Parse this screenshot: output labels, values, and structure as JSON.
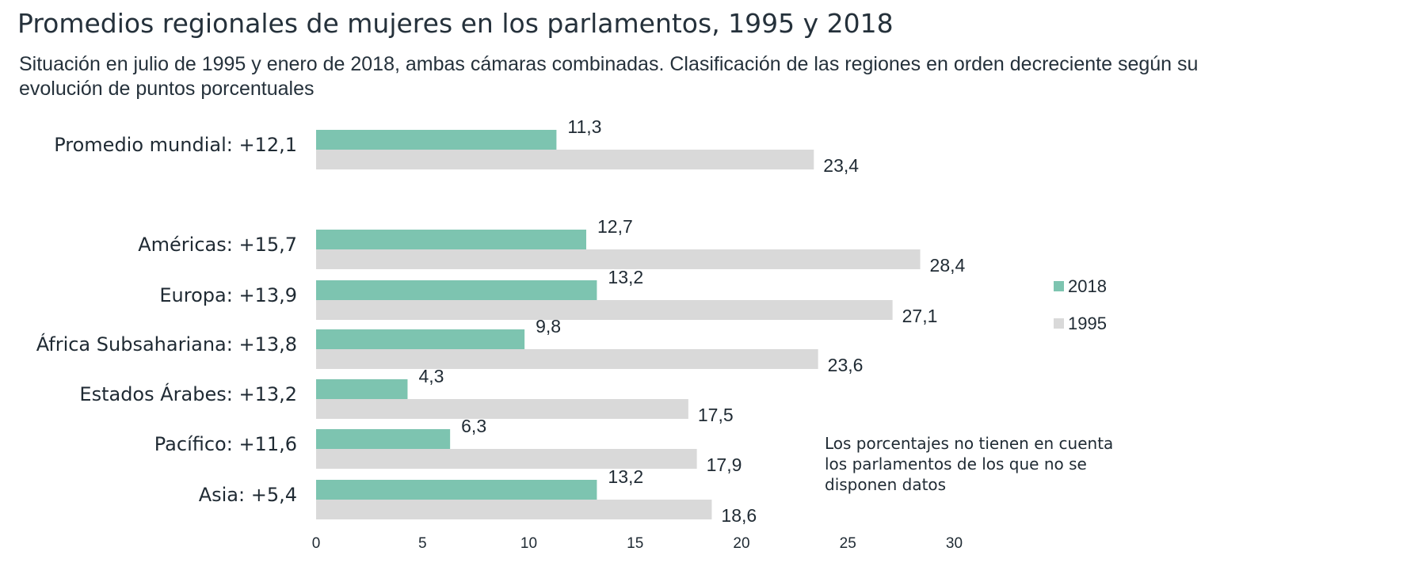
{
  "chart_data": {
    "type": "bar",
    "orientation": "horizontal",
    "title": "Promedios regionales de mujeres en los parlamentos, 1995 y 2018",
    "subtitle": "Situación en julio de 1995 y enero de 2018, ambas cámaras combinadas. Clasificación de las regiones en orden decreciente según su evolución de puntos porcentuales",
    "categories": [
      "Promedio mundial: +12,1",
      "Américas: +15,7",
      "Europa: +13,9",
      "África Subsahariana: +13,8",
      "Estados Árabes: +13,2",
      "Pacífico: +11,6",
      "Asia: +5,4"
    ],
    "series": [
      {
        "name": "2018",
        "color": "#7dc4b0",
        "values": [
          11.3,
          12.7,
          13.2,
          9.8,
          4.3,
          6.3,
          13.2
        ],
        "labels": [
          "11,3",
          "12,7",
          "13,2",
          "9,8",
          "4,3",
          "6,3",
          "13,2"
        ]
      },
      {
        "name": "1995",
        "color": "#d9d9d9",
        "values": [
          23.4,
          28.4,
          27.1,
          23.6,
          17.5,
          17.9,
          18.6
        ],
        "labels": [
          "23,4",
          "28,4",
          "27,1",
          "23,6",
          "17,5",
          "17,9",
          "18,6"
        ]
      }
    ],
    "xlim": [
      0,
      30
    ],
    "xticks": [
      "0",
      "5",
      "10",
      "15",
      "20",
      "25",
      "30"
    ],
    "grid": false,
    "legend": "right",
    "note": "Los porcentajes no tienen en cuenta\nlos parlamentos de los que no se\ndisponen datos"
  }
}
